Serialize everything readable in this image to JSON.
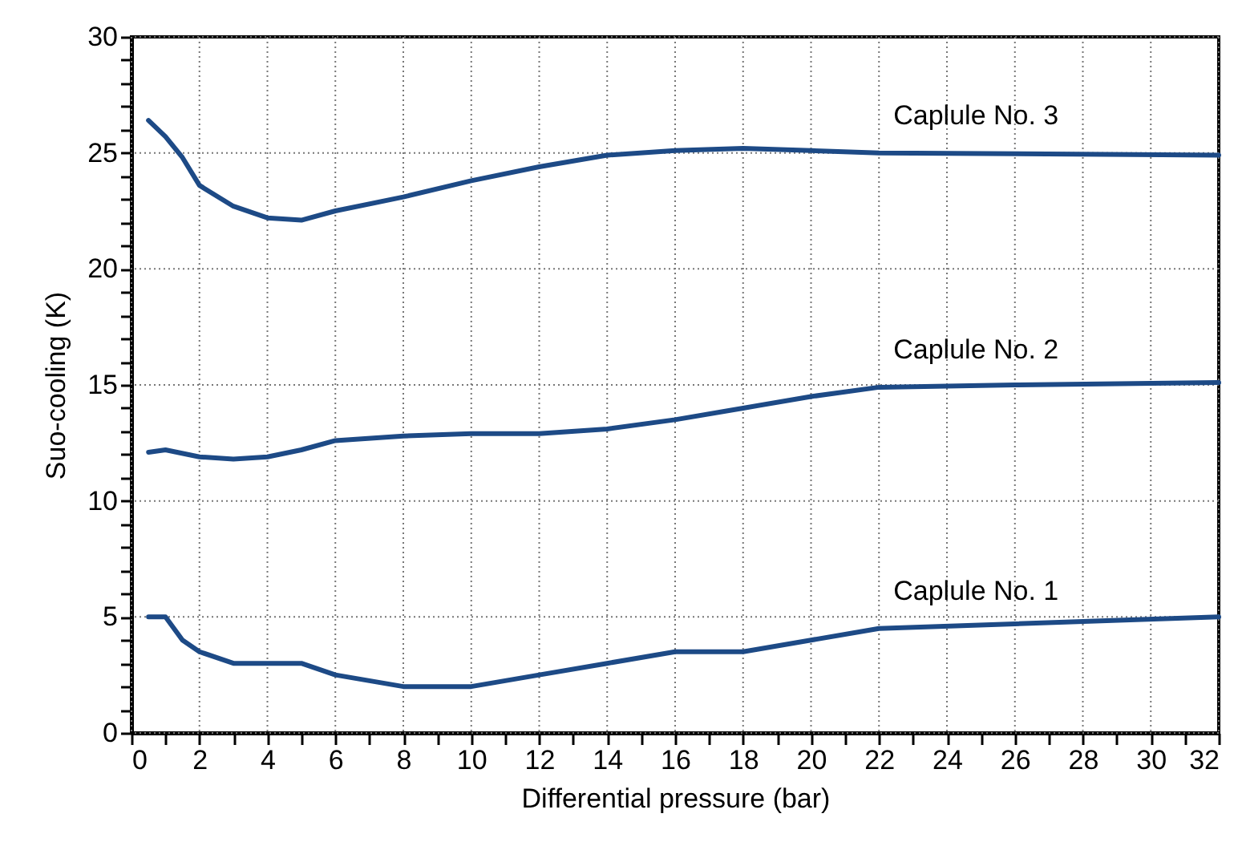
{
  "chart_data": {
    "type": "line",
    "xlabel": "Differential pressure (bar)",
    "ylabel": "Suo-cooling (K)",
    "xlim": [
      0,
      32
    ],
    "ylim": [
      0,
      30
    ],
    "xticks": [
      0,
      {
        "value": 1,
        "label": null
      },
      2,
      {
        "value": 3,
        "label": null
      },
      4,
      {
        "value": 5,
        "label": null
      },
      6,
      {
        "value": 7,
        "label": null
      },
      8,
      {
        "value": 9,
        "label": null
      },
      10,
      {
        "value": 11,
        "label": null
      },
      12,
      {
        "value": 13,
        "label": null
      },
      14,
      {
        "value": 15,
        "label": null
      },
      16,
      {
        "value": 17,
        "label": null
      },
      18,
      {
        "value": 19,
        "label": null
      },
      20,
      {
        "value": 21,
        "label": null
      },
      22,
      {
        "value": 23,
        "label": null
      },
      24,
      {
        "value": 25,
        "label": null
      },
      26,
      {
        "value": 27,
        "label": null
      },
      28,
      {
        "value": 29,
        "label": null
      },
      30,
      {
        "value": 31,
        "label": null
      },
      32
    ],
    "yticks": [
      0,
      {
        "value": 1,
        "label": null
      },
      {
        "value": 2,
        "label": null
      },
      {
        "value": 3,
        "label": null
      },
      {
        "value": 4,
        "label": null
      },
      5,
      {
        "value": 6,
        "label": null
      },
      {
        "value": 7,
        "label": null
      },
      {
        "value": 8,
        "label": null
      },
      {
        "value": 9,
        "label": null
      },
      10,
      {
        "value": 11,
        "label": null
      },
      {
        "value": 12,
        "label": null
      },
      {
        "value": 13,
        "label": null
      },
      {
        "value": 14,
        "label": null
      },
      15,
      {
        "value": 16,
        "label": null
      },
      {
        "value": 17,
        "label": null
      },
      {
        "value": 18,
        "label": null
      },
      {
        "value": 19,
        "label": null
      },
      20,
      {
        "value": 21,
        "label": null
      },
      {
        "value": 22,
        "label": null
      },
      {
        "value": 23,
        "label": null
      },
      {
        "value": 24,
        "label": null
      },
      25,
      {
        "value": 26,
        "label": null
      },
      {
        "value": 27,
        "label": null
      },
      {
        "value": 28,
        "label": null
      },
      {
        "value": 29,
        "label": null
      },
      30
    ],
    "grid": true,
    "line_style": "solid",
    "marker": "none",
    "series": [
      {
        "name": "Caplule No. 1",
        "color": "#1d4a86",
        "x": [
          0.5,
          1,
          1.5,
          2,
          3,
          4,
          5,
          6,
          8,
          10,
          12,
          14,
          16,
          18,
          20,
          22,
          26,
          32
        ],
        "values": [
          5,
          5,
          4,
          3.5,
          3,
          3,
          3,
          2.5,
          2,
          2,
          2.5,
          3,
          3.5,
          3.5,
          4,
          4.5,
          4.7,
          5
        ]
      },
      {
        "name": "Caplule No. 2",
        "color": "#1d4a86",
        "x": [
          0.5,
          1,
          2,
          3,
          4,
          5,
          6,
          8,
          10,
          12,
          14,
          16,
          18,
          20,
          22,
          26,
          32
        ],
        "values": [
          12.1,
          12.2,
          11.9,
          11.8,
          11.9,
          12.2,
          12.6,
          12.8,
          12.9,
          12.9,
          13.1,
          13.5,
          14,
          14.5,
          14.9,
          15,
          15.1
        ]
      },
      {
        "name": "Caplule No. 3",
        "color": "#1d4a86",
        "x": [
          0.5,
          1,
          1.5,
          2,
          3,
          4,
          5,
          6,
          8,
          10,
          12,
          14,
          16,
          18,
          20,
          22,
          32
        ],
        "values": [
          26.4,
          25.7,
          24.8,
          23.6,
          22.7,
          22.2,
          22.1,
          22.5,
          23.1,
          23.8,
          24.4,
          24.9,
          25.1,
          25.2,
          25.1,
          25,
          24.9
        ]
      }
    ]
  }
}
